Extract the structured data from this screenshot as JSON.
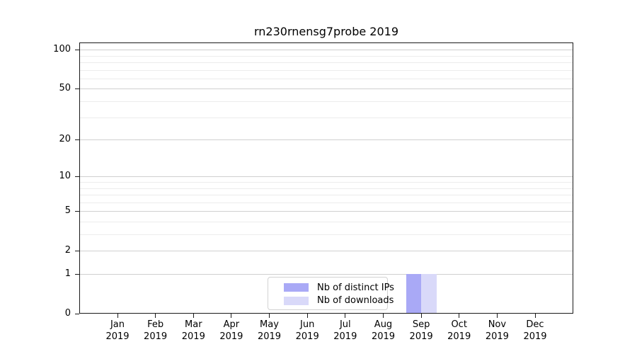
{
  "chart_data": {
    "type": "bar",
    "title": "rn230rnensg7probe 2019",
    "categories": [
      "Jan",
      "Feb",
      "Mar",
      "Apr",
      "May",
      "Jun",
      "Jul",
      "Aug",
      "Sep",
      "Oct",
      "Nov",
      "Dec"
    ],
    "category_year": "2019",
    "series": [
      {
        "name": "Nb of distinct IPs",
        "color": "#a9a9f6",
        "values": [
          0,
          0,
          0,
          0,
          0,
          0,
          0,
          0,
          1,
          0,
          0,
          0
        ]
      },
      {
        "name": "Nb of downloads",
        "color": "#d9d9f9",
        "values": [
          0,
          0,
          0,
          0,
          0,
          0,
          0,
          0,
          1,
          0,
          0,
          0
        ]
      }
    ],
    "yscale": "log1p",
    "ylim": [
      0,
      113.5
    ],
    "y_major_ticks": [
      0,
      1,
      2,
      5,
      10,
      20,
      50,
      100
    ],
    "y_minor_ticks": [
      3,
      4,
      6,
      7,
      8,
      9,
      30,
      40,
      60,
      70,
      80,
      90
    ],
    "grid": true,
    "legend": {
      "entries": [
        "Nb of distinct IPs",
        "Nb of downloads"
      ],
      "position": "lower center"
    }
  },
  "colors": {
    "background": "#ffffff",
    "spine": "#1a1a1a",
    "grid_major": "#d0d0d0",
    "grid_minor": "#ececec",
    "text": "#000000"
  }
}
